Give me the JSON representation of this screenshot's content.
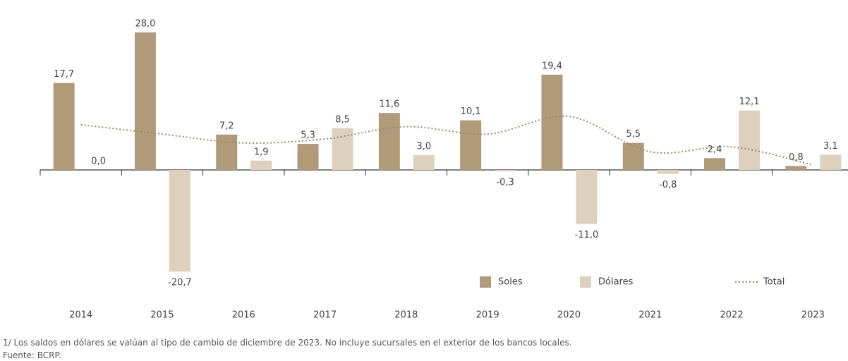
{
  "chart_data": {
    "type": "bar",
    "categories": [
      "2014",
      "2015",
      "2016",
      "2017",
      "2018",
      "2019",
      "2020",
      "2021",
      "2022",
      "2023"
    ],
    "series": [
      {
        "name": "Soles",
        "color": "#b09a7a",
        "values": [
          17.7,
          28.0,
          7.2,
          5.3,
          11.6,
          10.1,
          19.4,
          5.5,
          2.4,
          0.8
        ],
        "value_labels": [
          "17,7",
          "28,0",
          "7,2",
          "5,3",
          "11,6",
          "10,1",
          "19,4",
          "5,5",
          "2,4",
          "0,8"
        ]
      },
      {
        "name": "Dólares",
        "color": "#ddd0bd",
        "values": [
          0.0,
          -20.7,
          1.9,
          8.5,
          3.0,
          -0.3,
          -11.0,
          -0.8,
          12.1,
          3.1
        ],
        "value_labels": [
          "0,0",
          "-20,7",
          "1,9",
          "8,5",
          "3,0",
          "-0,3",
          "-11,0",
          "-0,8",
          "12,1",
          "3,1"
        ]
      },
      {
        "name": "Total",
        "color": "#9a8a6a",
        "type": "line",
        "values": [
          9.2,
          7.3,
          5.5,
          6.3,
          8.8,
          7.3,
          10.9,
          3.7,
          4.7,
          1.0
        ]
      }
    ],
    "notes": [
      "1/ Los saldos en dólares se valúan al tipo de cambio de diciembre de 2023. No incluye sucursales en el exterior de los bancos locales.",
      "Fuente: BCRP."
    ]
  }
}
